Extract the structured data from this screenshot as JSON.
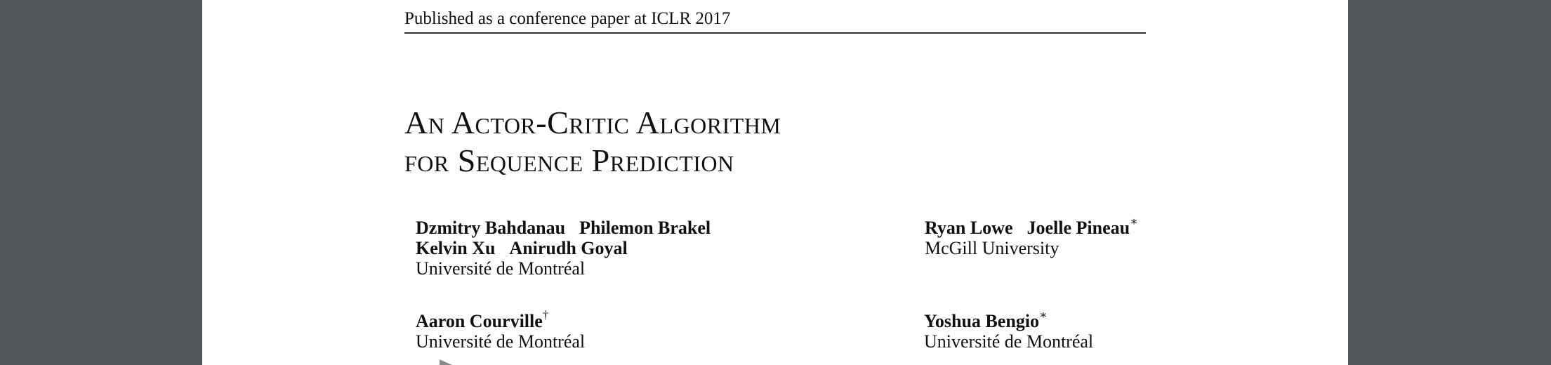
{
  "header": {
    "running_head": "Published as a conference paper at ICLR 2017"
  },
  "paper": {
    "title_line1": "An Actor-Critic Algorithm",
    "title_line2": "for Sequence Prediction",
    "author_groups": [
      {
        "names_line1": [
          "Dzmitry Bahdanau",
          "Philemon Brakel"
        ],
        "names_line2": [
          "Kelvin Xu",
          "Anirudh Goyal"
        ],
        "affiliation": "Université de Montréal"
      },
      {
        "names_line1": [
          "Ryan Lowe",
          "Joelle Pineau"
        ],
        "pineau_mark": "∗",
        "affiliation": "McGill University"
      },
      {
        "name": "Aaron Courville",
        "mark": "†",
        "affiliation": "Université de Montréal"
      },
      {
        "name": "Yoshua Bengio",
        "mark": "∗",
        "affiliation": "Université de Montréal"
      }
    ]
  },
  "viewer": {
    "background_color": "#525659",
    "page_color": "#ffffff"
  }
}
